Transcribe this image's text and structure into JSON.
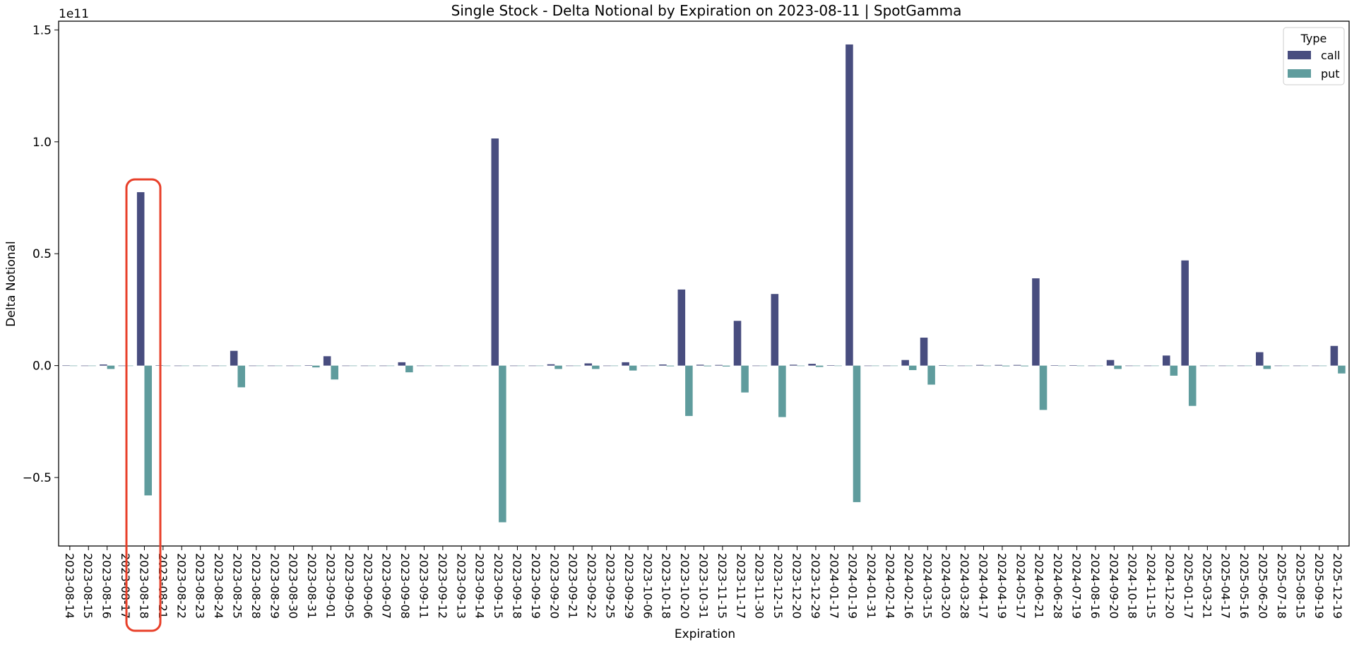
{
  "chart_data": {
    "type": "bar",
    "title": "Single Stock - Delta Notional by Expiration on 2023-08-11 | SpotGamma",
    "xlabel": "Expiration",
    "ylabel": "Delta Notional",
    "y_offset_label": "1e11",
    "value_unit_multiplier": 100000000000.0,
    "ylim": [
      -0.806,
      1.539
    ],
    "yticks": [
      -0.5,
      0.0,
      0.5,
      1.0,
      1.5
    ],
    "ytick_labels": [
      "−0.5",
      "0.0",
      "0.5",
      "1.0",
      "1.5"
    ],
    "grid": false,
    "legend": {
      "title": "Type",
      "placement": "top-right",
      "entries": [
        "call",
        "put"
      ]
    },
    "colors": {
      "call": "#484d7f",
      "put": "#5f9c9d",
      "highlight": "#e8402a"
    },
    "highlighted_category": "2023-08-18",
    "categories": [
      "2023-08-14",
      "2023-08-15",
      "2023-08-16",
      "2023-08-17",
      "2023-08-18",
      "2023-08-21",
      "2023-08-22",
      "2023-08-23",
      "2023-08-24",
      "2023-08-25",
      "2023-08-28",
      "2023-08-29",
      "2023-08-30",
      "2023-08-31",
      "2023-09-01",
      "2023-09-05",
      "2023-09-06",
      "2023-09-07",
      "2023-09-08",
      "2023-09-11",
      "2023-09-12",
      "2023-09-13",
      "2023-09-14",
      "2023-09-15",
      "2023-09-18",
      "2023-09-19",
      "2023-09-20",
      "2023-09-21",
      "2023-09-22",
      "2023-09-25",
      "2023-09-29",
      "2023-10-06",
      "2023-10-18",
      "2023-10-20",
      "2023-10-31",
      "2023-11-15",
      "2023-11-17",
      "2023-11-30",
      "2023-12-15",
      "2023-12-20",
      "2023-12-29",
      "2024-01-17",
      "2024-01-19",
      "2024-01-31",
      "2024-02-14",
      "2024-02-16",
      "2024-03-15",
      "2024-03-20",
      "2024-03-28",
      "2024-04-17",
      "2024-04-19",
      "2024-05-17",
      "2024-06-21",
      "2024-06-28",
      "2024-07-19",
      "2024-08-16",
      "2024-09-20",
      "2024-10-18",
      "2024-11-15",
      "2024-12-20",
      "2025-01-17",
      "2025-03-21",
      "2025-04-17",
      "2025-05-16",
      "2025-06-20",
      "2025-07-18",
      "2025-08-15",
      "2025-09-19",
      "2025-12-19"
    ],
    "series": [
      {
        "name": "call",
        "values": [
          0.0005,
          0,
          0.005,
          0,
          0.775,
          0.001,
          0,
          0,
          0,
          0.066,
          0,
          0,
          0,
          0.002,
          0.042,
          0,
          0,
          0,
          0.015,
          0,
          0,
          0,
          0,
          1.015,
          0,
          0,
          0.006,
          0,
          0.01,
          0,
          0.015,
          0,
          0.005,
          0.34,
          0.004,
          0.003,
          0.2,
          0,
          0.32,
          0.004,
          0.008,
          0.002,
          1.435,
          0,
          0,
          0.025,
          0.125,
          0.002,
          0,
          0.003,
          0.003,
          0.003,
          0.39,
          0.001,
          0.002,
          0,
          0.025,
          0,
          0,
          0.045,
          0.47,
          0,
          0,
          0,
          0.06,
          0,
          0,
          0,
          0.088
        ]
      },
      {
        "name": "put",
        "values": [
          -0.0005,
          -0.0005,
          -0.015,
          0,
          -0.58,
          0,
          0,
          -0.0005,
          0,
          -0.097,
          0,
          0,
          0,
          -0.008,
          -0.062,
          0,
          0,
          0,
          -0.03,
          0,
          0,
          -0.002,
          0,
          -0.7,
          0,
          0,
          -0.015,
          0,
          -0.015,
          0,
          -0.022,
          0,
          -0.003,
          -0.225,
          -0.003,
          -0.004,
          -0.12,
          -0.002,
          -0.23,
          -0.002,
          -0.006,
          -0.001,
          -0.61,
          0,
          0,
          -0.02,
          -0.085,
          -0.002,
          0,
          -0.002,
          -0.003,
          -0.003,
          -0.198,
          -0.002,
          -0.002,
          -0.001,
          -0.015,
          0,
          0,
          -0.045,
          -0.18,
          0,
          0,
          0,
          -0.015,
          0,
          0,
          -0.002,
          -0.035
        ]
      }
    ]
  }
}
